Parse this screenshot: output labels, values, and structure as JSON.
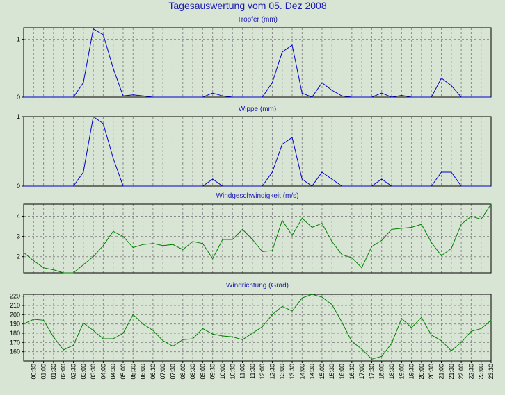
{
  "title": "Tagesauswertung vom 05. Dez 2008",
  "colors": {
    "background": "#d8e4d4",
    "blue": "#0000cc",
    "green": "#008000",
    "title": "#1a1ab0",
    "grid": "#8a8a8a"
  },
  "x_ticks": [
    "00:30",
    "01:00",
    "01:30",
    "02:00",
    "02:30",
    "03:00",
    "03:30",
    "04:00",
    "04:30",
    "05:00",
    "05:30",
    "06:00",
    "06:30",
    "07:00",
    "07:30",
    "08:00",
    "08:30",
    "09:00",
    "09:30",
    "10:00",
    "10:30",
    "11:00",
    "11:30",
    "12:00",
    "12:30",
    "13:00",
    "13:30",
    "14:00",
    "14:30",
    "15:00",
    "15:30",
    "16:00",
    "16:30",
    "17:00",
    "17:30",
    "18:00",
    "18:30",
    "19:00",
    "19:30",
    "20:00",
    "20:30",
    "21:00",
    "21:30",
    "22:00",
    "22:30",
    "23:00",
    "23:30"
  ],
  "chart_data": [
    {
      "type": "line",
      "title": "Tropfer (mm)",
      "color": "#0000cc",
      "ylim": [
        0,
        1.2
      ],
      "yticks": [
        0,
        1
      ],
      "grid": true,
      "x": [
        "00:00",
        "00:30",
        "01:00",
        "01:30",
        "02:00",
        "02:30",
        "03:00",
        "03:30",
        "04:00",
        "04:30",
        "05:00",
        "05:30",
        "06:00",
        "06:30",
        "07:00",
        "07:30",
        "08:00",
        "08:30",
        "09:00",
        "09:30",
        "10:00",
        "10:30",
        "11:00",
        "11:30",
        "12:00",
        "12:30",
        "13:00",
        "13:30",
        "14:00",
        "14:30",
        "15:00",
        "15:30",
        "16:00",
        "16:30",
        "17:00",
        "17:30",
        "18:00",
        "18:30",
        "19:00",
        "19:30",
        "20:00",
        "20:30",
        "21:00",
        "21:30",
        "22:00",
        "22:30",
        "23:00",
        "23:30"
      ],
      "values": [
        0,
        0,
        0,
        0,
        0,
        0,
        0.25,
        1.18,
        1.08,
        0.5,
        0.02,
        0.04,
        0.02,
        0,
        0,
        0,
        0,
        0,
        0,
        0.07,
        0.02,
        0,
        0,
        0,
        0,
        0.25,
        0.78,
        0.9,
        0.07,
        0,
        0.25,
        0.12,
        0.02,
        0,
        0,
        0,
        0.07,
        0,
        0.03,
        0,
        0,
        0,
        0.33,
        0.2,
        0,
        0,
        0,
        0
      ]
    },
    {
      "type": "line",
      "title": "Wippe (mm)",
      "color": "#0000cc",
      "ylim": [
        0,
        1.0
      ],
      "yticks": [
        0,
        1
      ],
      "grid": true,
      "x": [
        "00:00",
        "00:30",
        "01:00",
        "01:30",
        "02:00",
        "02:30",
        "03:00",
        "03:30",
        "04:00",
        "04:30",
        "05:00",
        "05:30",
        "06:00",
        "06:30",
        "07:00",
        "07:30",
        "08:00",
        "08:30",
        "09:00",
        "09:30",
        "10:00",
        "10:30",
        "11:00",
        "11:30",
        "12:00",
        "12:30",
        "13:00",
        "13:30",
        "14:00",
        "14:30",
        "15:00",
        "15:30",
        "16:00",
        "16:30",
        "17:00",
        "17:30",
        "18:00",
        "18:30",
        "19:00",
        "19:30",
        "20:00",
        "20:30",
        "21:00",
        "21:30",
        "22:00",
        "22:30",
        "23:00",
        "23:30"
      ],
      "values": [
        0,
        0,
        0,
        0,
        0,
        0,
        0.2,
        1.0,
        0.9,
        0.4,
        0,
        0,
        0,
        0,
        0,
        0,
        0,
        0,
        0,
        0.1,
        0,
        0,
        0,
        0,
        0,
        0.2,
        0.6,
        0.7,
        0.1,
        0,
        0.2,
        0.1,
        0,
        0,
        0,
        0,
        0.1,
        0,
        0,
        0,
        0,
        0,
        0.2,
        0.2,
        0,
        0,
        0,
        0
      ]
    },
    {
      "type": "line",
      "title": "Windgeschwindigkeit (m/s)",
      "color": "#008000",
      "ylim": [
        1.2,
        4.6
      ],
      "yticks": [
        2,
        3,
        4
      ],
      "grid": true,
      "x": [
        "00:00",
        "00:30",
        "01:00",
        "01:30",
        "02:00",
        "02:30",
        "03:00",
        "03:30",
        "04:00",
        "04:30",
        "05:00",
        "05:30",
        "06:00",
        "06:30",
        "07:00",
        "07:30",
        "08:00",
        "08:30",
        "09:00",
        "09:30",
        "10:00",
        "10:30",
        "11:00",
        "11:30",
        "12:00",
        "12:30",
        "13:00",
        "13:30",
        "14:00",
        "14:30",
        "15:00",
        "15:30",
        "16:00",
        "16:30",
        "17:00",
        "17:30",
        "18:00",
        "18:30",
        "19:00",
        "19:30",
        "20:00",
        "20:30",
        "21:00",
        "21:30",
        "22:00",
        "22:30",
        "23:00",
        "23:30"
      ],
      "values": [
        2.2,
        1.8,
        1.45,
        1.35,
        1.2,
        1.2,
        1.6,
        2.0,
        2.55,
        3.25,
        3.0,
        2.45,
        2.6,
        2.65,
        2.55,
        2.6,
        2.35,
        2.75,
        2.65,
        1.9,
        2.85,
        2.85,
        3.35,
        2.85,
        2.25,
        2.3,
        3.8,
        3.05,
        3.9,
        3.45,
        3.65,
        2.75,
        2.1,
        1.95,
        1.45,
        2.5,
        2.8,
        3.35,
        3.4,
        3.45,
        3.6,
        2.7,
        2.05,
        2.4,
        3.6,
        4.0,
        3.85,
        4.6
      ]
    },
    {
      "type": "line",
      "title": "Windrichtung (Grad)",
      "color": "#008000",
      "ylim": [
        150,
        222
      ],
      "yticks": [
        160,
        170,
        180,
        190,
        200,
        210,
        220
      ],
      "grid": true,
      "x": [
        "00:00",
        "00:30",
        "01:00",
        "01:30",
        "02:00",
        "02:30",
        "03:00",
        "03:30",
        "04:00",
        "04:30",
        "05:00",
        "05:30",
        "06:00",
        "06:30",
        "07:00",
        "07:30",
        "08:00",
        "08:30",
        "09:00",
        "09:30",
        "10:00",
        "10:30",
        "11:00",
        "11:30",
        "12:00",
        "12:30",
        "13:00",
        "13:30",
        "14:00",
        "14:30",
        "15:00",
        "15:30",
        "16:00",
        "16:30",
        "17:00",
        "17:30",
        "18:00",
        "18:30",
        "19:00",
        "19:30",
        "20:00",
        "20:30",
        "21:00",
        "21:30",
        "22:00",
        "22:30",
        "23:00",
        "23:30"
      ],
      "values": [
        190,
        195,
        194,
        176,
        162,
        167,
        191,
        183,
        174,
        174,
        180,
        200,
        190,
        183,
        172,
        166,
        173,
        174,
        185,
        179,
        177,
        176,
        173,
        180,
        187,
        200,
        209,
        204,
        218,
        222,
        219,
        211,
        192,
        171,
        163,
        152,
        155,
        169,
        196,
        186,
        197,
        178,
        172,
        161,
        170,
        182,
        185,
        194
      ]
    }
  ]
}
